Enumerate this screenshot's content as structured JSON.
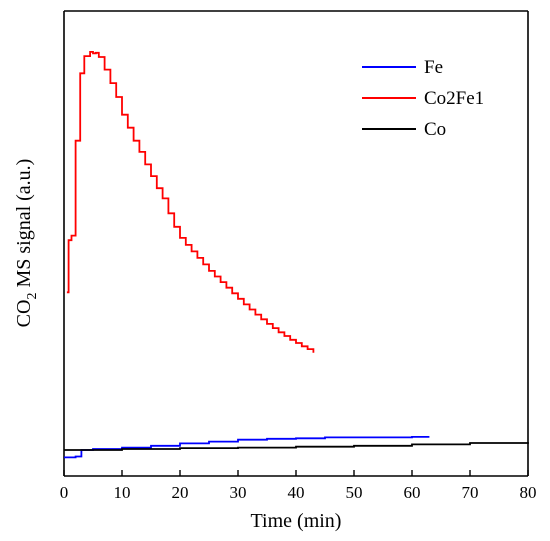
{
  "chart_data": {
    "type": "line",
    "xlabel": "Time (min)",
    "ylabel_main": "CO",
    "ylabel_sub": "2",
    "ylabel_rest": " MS signal (a.u.)",
    "xlim": [
      0,
      80
    ],
    "ylim": [
      0,
      100
    ],
    "x_ticks": [
      0,
      10,
      20,
      30,
      40,
      50,
      60,
      70,
      80
    ],
    "y_ticks_labeled": false,
    "grid": false,
    "legend_position": "top-right",
    "series": [
      {
        "name": "Fe",
        "color": "#0000ff",
        "points": [
          [
            0,
            4
          ],
          [
            2,
            4.2
          ],
          [
            3,
            5.6
          ],
          [
            5,
            5.8
          ],
          [
            10,
            6.1
          ],
          [
            15,
            6.5
          ],
          [
            20,
            7
          ],
          [
            25,
            7.4
          ],
          [
            30,
            7.8
          ],
          [
            35,
            8
          ],
          [
            40,
            8.1
          ],
          [
            45,
            8.3
          ],
          [
            50,
            8.3
          ],
          [
            55,
            8.3
          ],
          [
            60,
            8.4
          ],
          [
            63,
            8.4
          ]
        ]
      },
      {
        "name": "Co2Fe1",
        "color": "#ff0000",
        "points": [
          [
            0.5,
            39.5
          ],
          [
            0.8,
            50.7
          ],
          [
            1.3,
            51.7
          ],
          [
            2,
            72.1
          ],
          [
            2.8,
            86.6
          ],
          [
            3.5,
            90.3
          ],
          [
            4.5,
            91.2
          ],
          [
            5,
            90.9
          ],
          [
            5.5,
            91
          ],
          [
            6,
            90.1
          ],
          [
            7,
            87.4
          ],
          [
            8,
            84.5
          ],
          [
            9,
            81.5
          ],
          [
            10,
            77.7
          ],
          [
            11,
            74.9
          ],
          [
            12,
            72.1
          ],
          [
            13,
            69.7
          ],
          [
            14,
            67
          ],
          [
            15,
            64.5
          ],
          [
            16,
            61.9
          ],
          [
            17,
            59.7
          ],
          [
            18,
            56.5
          ],
          [
            19,
            53.6
          ],
          [
            20,
            51.2
          ],
          [
            21,
            49.7
          ],
          [
            22,
            48.3
          ],
          [
            23,
            46.9
          ],
          [
            24,
            45.5
          ],
          [
            25,
            44.1
          ],
          [
            26,
            42.9
          ],
          [
            27,
            41.7
          ],
          [
            28,
            40.5
          ],
          [
            29,
            39.3
          ],
          [
            30,
            38.1
          ],
          [
            31,
            36.9
          ],
          [
            32,
            35.8
          ],
          [
            33,
            34.7
          ],
          [
            34,
            33.7
          ],
          [
            35,
            32.7
          ],
          [
            36,
            31.8
          ],
          [
            37,
            30.9
          ],
          [
            38,
            30.1
          ],
          [
            39,
            29.3
          ],
          [
            40,
            28.6
          ],
          [
            41,
            27.9
          ],
          [
            42,
            27.3
          ],
          [
            43,
            26.5
          ]
        ]
      },
      {
        "name": "Co",
        "color": "#000000",
        "points": [
          [
            0,
            5.6
          ],
          [
            10,
            5.8
          ],
          [
            20,
            6
          ],
          [
            30,
            6.1
          ],
          [
            40,
            6.3
          ],
          [
            50,
            6.5
          ],
          [
            60,
            6.8
          ],
          [
            70,
            7.1
          ],
          [
            80,
            7.3
          ]
        ]
      }
    ]
  }
}
